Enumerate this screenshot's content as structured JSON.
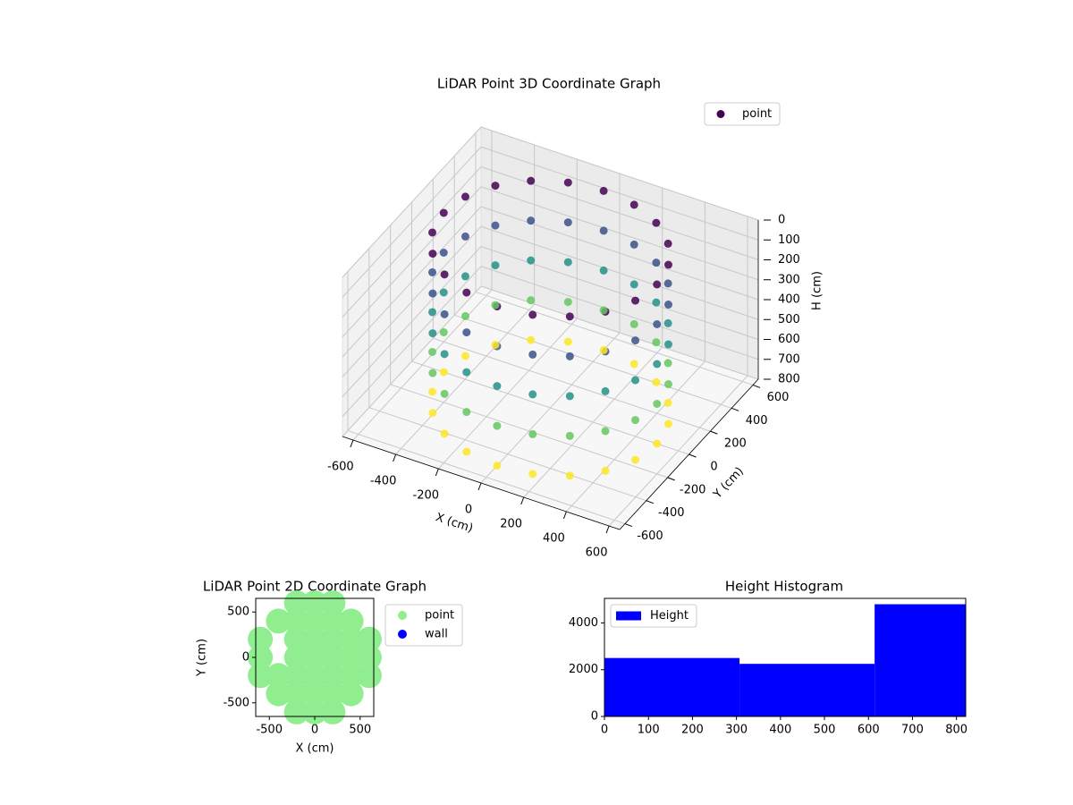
{
  "chart_data": [
    {
      "type": "scatter3d",
      "title": "LiDAR Point 3D Coordinate Graph",
      "xlabel": "X (cm)",
      "ylabel": "Y (cm)",
      "zlabel": "H (cm)",
      "colormap": "viridis",
      "legend": "upper right",
      "grid": true,
      "xlim": [
        -650,
        650
      ],
      "ylim": [
        -650,
        650
      ],
      "zlim": [
        800,
        0
      ],
      "xticks": [
        -600,
        -400,
        -200,
        0,
        200,
        400,
        600
      ],
      "yticks": [
        -600,
        -400,
        -200,
        0,
        200,
        400,
        600
      ],
      "zticks": [
        0,
        100,
        200,
        300,
        400,
        500,
        600,
        700,
        800
      ],
      "series": [
        {
          "name": "point",
          "color": "#440154",
          "x": [
            500,
            476,
            405,
            294,
            155,
            0,
            -155,
            -294,
            -405,
            -476,
            -500,
            -476,
            -405,
            -294,
            -155,
            0,
            155,
            294,
            405,
            476,
            500,
            476,
            405,
            294,
            155,
            0,
            -155,
            -294,
            -405,
            -476,
            -500,
            -476,
            -405,
            -294,
            -155,
            0,
            155,
            294,
            405,
            476,
            500,
            476,
            405,
            294,
            155,
            0,
            -155,
            -294,
            -405,
            -476,
            -500,
            -476,
            -405,
            -294,
            -155,
            0,
            155,
            294,
            405,
            476,
            500,
            476,
            405,
            294,
            155,
            0,
            -155,
            -294,
            -405,
            -476,
            -500,
            -476,
            -405,
            -294,
            -155,
            0,
            155,
            294,
            405,
            476,
            500,
            476,
            405,
            294,
            155,
            0,
            -155,
            -294,
            -405,
            -476,
            -500,
            -476,
            -405,
            -294,
            -155,
            0,
            155,
            294,
            405,
            476
          ],
          "y": [
            0,
            155,
            294,
            405,
            476,
            500,
            476,
            405,
            294,
            155,
            0,
            -155,
            -294,
            -405,
            -476,
            -500,
            -476,
            -405,
            -294,
            -155,
            0,
            155,
            294,
            405,
            476,
            500,
            476,
            405,
            294,
            155,
            0,
            -155,
            -294,
            -405,
            -476,
            -500,
            -476,
            -405,
            -294,
            -155,
            0,
            155,
            294,
            405,
            476,
            500,
            476,
            405,
            294,
            155,
            0,
            -155,
            -294,
            -405,
            -476,
            -500,
            -476,
            -405,
            -294,
            -155,
            0,
            155,
            294,
            405,
            476,
            500,
            476,
            405,
            294,
            155,
            0,
            -155,
            -294,
            -405,
            -476,
            -500,
            -476,
            -405,
            -294,
            -155,
            0,
            155,
            294,
            405,
            476,
            500,
            476,
            405,
            294,
            155,
            0,
            -155,
            -294,
            -405,
            -476,
            -500,
            -476,
            -405,
            -294,
            -155
          ],
          "z": [
            0,
            0,
            0,
            0,
            0,
            0,
            0,
            0,
            0,
            0,
            0,
            0,
            0,
            0,
            0,
            0,
            0,
            0,
            0,
            0,
            200,
            200,
            200,
            200,
            200,
            200,
            200,
            200,
            200,
            200,
            200,
            200,
            200,
            200,
            200,
            200,
            200,
            200,
            200,
            200,
            400,
            400,
            400,
            400,
            400,
            400,
            400,
            400,
            400,
            400,
            400,
            400,
            400,
            400,
            400,
            400,
            400,
            400,
            400,
            400,
            600,
            600,
            600,
            600,
            600,
            600,
            600,
            600,
            600,
            600,
            600,
            600,
            600,
            600,
            600,
            600,
            600,
            600,
            600,
            600,
            800,
            800,
            800,
            800,
            800,
            800,
            800,
            800,
            800,
            800,
            800,
            800,
            800,
            800,
            800,
            800,
            800,
            800,
            800,
            800
          ]
        }
      ]
    },
    {
      "type": "scatter",
      "title": "LiDAR Point 2D Coordinate Graph",
      "xlabel": "X (cm)",
      "ylabel": "Y (cm)",
      "legend": "outside right",
      "xlim": [
        -650,
        650
      ],
      "ylim": [
        -650,
        650
      ],
      "xticks": [
        -500,
        0,
        500
      ],
      "yticks": [
        -500,
        0,
        500
      ],
      "series": [
        {
          "name": "point",
          "color": "#90ee90",
          "x": [
            -200,
            0,
            200,
            -400,
            -200,
            0,
            200,
            400,
            -600,
            -400,
            -200,
            0,
            200,
            400,
            600,
            -600,
            -200,
            0,
            200,
            400,
            600,
            -600,
            -200,
            0,
            200,
            400,
            600,
            -400,
            -200,
            0,
            200,
            400,
            -200,
            0,
            200
          ],
          "y": [
            -600,
            -600,
            -600,
            -400,
            -400,
            -400,
            -400,
            -400,
            -200,
            -200,
            -200,
            -200,
            -200,
            -200,
            -200,
            0,
            0,
            0,
            0,
            0,
            0,
            200,
            200,
            200,
            200,
            200,
            200,
            400,
            400,
            400,
            400,
            400,
            600,
            600,
            600
          ]
        },
        {
          "name": "wall",
          "color": "#0000ff",
          "x": [],
          "y": []
        }
      ]
    },
    {
      "type": "histogram",
      "title": "Height Histogram",
      "legend": "upper left",
      "series": [
        {
          "name": "Height",
          "color": "#0000ff",
          "bins": [
            0,
            307,
            614,
            821
          ],
          "values": [
            2500,
            2250,
            4800
          ]
        }
      ],
      "xlim": [
        0,
        821
      ],
      "ylim": [
        0,
        5050
      ],
      "xticks": [
        0,
        100,
        200,
        300,
        400,
        500,
        600,
        700,
        800
      ],
      "yticks": [
        0,
        2000,
        4000
      ]
    }
  ]
}
